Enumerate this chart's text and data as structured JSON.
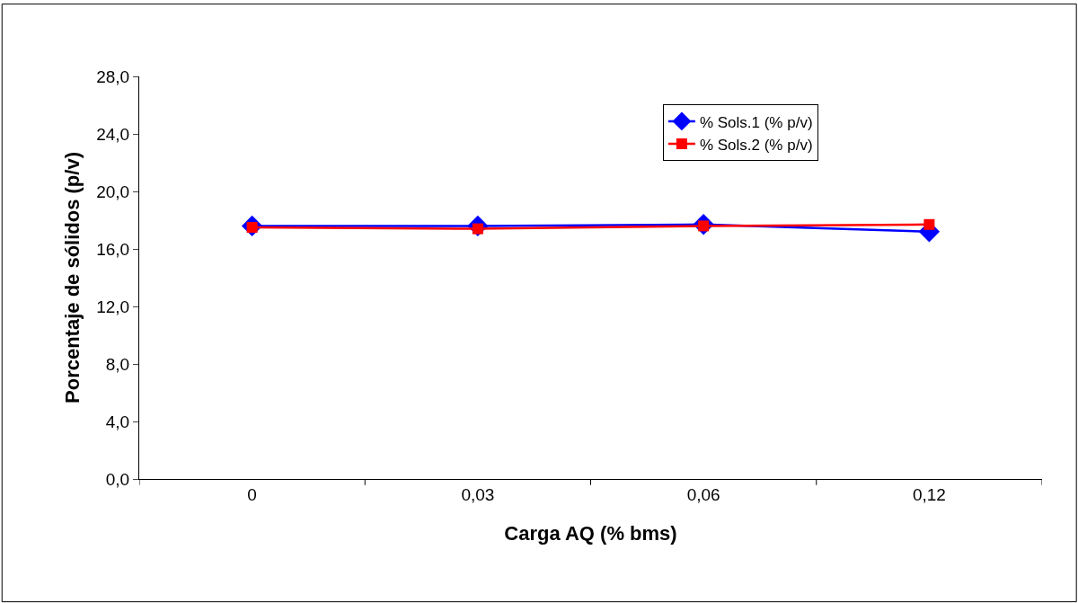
{
  "chart_data": {
    "type": "line",
    "xlabel": "Carga AQ (% bms)",
    "ylabel": "Porcentaje de sólidos (p/v)",
    "categories": [
      "0",
      "0,03",
      "0,06",
      "0,12"
    ],
    "series": [
      {
        "name": "% Sols.1 (% p/v)",
        "color": "#0000ff",
        "values": [
          17.6,
          17.6,
          17.7,
          17.2
        ],
        "marker": "diamond"
      },
      {
        "name": "% Sols.2 (% p/v)",
        "color": "#ff0000",
        "values": [
          17.5,
          17.4,
          17.6,
          17.7
        ],
        "marker": "square"
      }
    ],
    "ylim": [
      0,
      28
    ],
    "yticks": [
      {
        "value": 0,
        "label": "0,0"
      },
      {
        "value": 4,
        "label": "4,0"
      },
      {
        "value": 8,
        "label": "8,0"
      },
      {
        "value": 12,
        "label": "12,0"
      },
      {
        "value": 16,
        "label": "16,0"
      },
      {
        "value": 20,
        "label": "20,0"
      },
      {
        "value": 24,
        "label": "24,0"
      },
      {
        "value": 28,
        "label": "28,0"
      }
    ],
    "legend": "top right"
  }
}
